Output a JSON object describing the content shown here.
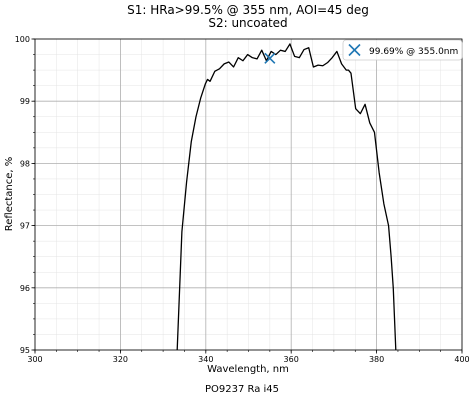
{
  "chart_data": {
    "type": "line",
    "title_lines": [
      "S1: HRa>99.5% @ 355 nm, AOI=45 deg",
      "S2: uncoated"
    ],
    "xlabel": "Wavelength, nm",
    "ylabel": "Reflectance, %",
    "footer": "PO9237 Ra i45",
    "xlim": [
      300,
      400
    ],
    "ylim": [
      95,
      100
    ],
    "x_ticks": [
      300,
      320,
      340,
      360,
      380,
      400
    ],
    "y_ticks": [
      95,
      96,
      97,
      98,
      99,
      100
    ],
    "x_minor_step": 5,
    "y_minor_step": 0.25,
    "grid": true,
    "legend_position": "top-right",
    "series": [
      {
        "color": "#000000",
        "x": [
          333.3,
          334.4,
          335.5,
          336.6,
          337.7,
          338.8,
          339.9,
          340.4,
          341.0,
          342.1,
          343.2,
          344.3,
          345.4,
          346.5,
          347.6,
          348.7,
          349.8,
          350.9,
          352.0,
          353.1,
          354.2,
          355.3,
          356.4,
          357.5,
          358.6,
          359.7,
          360.8,
          361.9,
          363.0,
          364.1,
          365.2,
          366.3,
          367.4,
          368.5,
          369.6,
          370.7,
          371.8,
          372.9,
          373.4,
          374.0,
          375.1,
          376.2,
          377.3,
          378.4,
          379.5,
          380.6,
          381.7,
          382.8,
          383.4,
          383.9,
          384.5
        ],
        "y": [
          95.0,
          96.9,
          97.7,
          98.35,
          98.75,
          99.05,
          99.28,
          99.35,
          99.32,
          99.48,
          99.52,
          99.6,
          99.63,
          99.55,
          99.7,
          99.65,
          99.75,
          99.7,
          99.68,
          99.82,
          99.65,
          99.8,
          99.75,
          99.82,
          99.8,
          99.92,
          99.72,
          99.7,
          99.83,
          99.86,
          99.55,
          99.58,
          99.57,
          99.62,
          99.7,
          99.8,
          99.6,
          99.5,
          99.5,
          99.45,
          98.88,
          98.8,
          98.95,
          98.65,
          98.5,
          97.85,
          97.35,
          97.0,
          96.5,
          96.0,
          95.0
        ]
      }
    ],
    "marker": {
      "x": 355.0,
      "y": 99.69,
      "symbol": "x",
      "color": "#1f77b4",
      "label": "99.69% @ 355.0nm"
    }
  }
}
